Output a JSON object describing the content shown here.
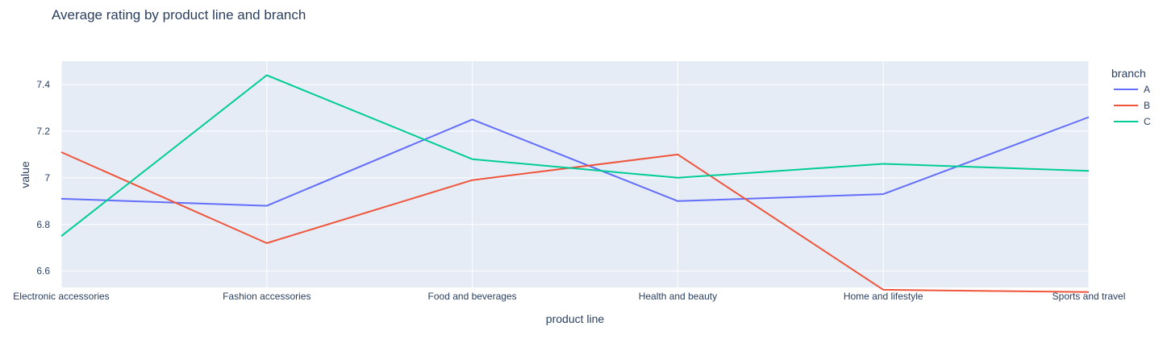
{
  "chart_data": {
    "type": "line",
    "title": "Average rating by product line and branch",
    "xlabel": "product line",
    "ylabel": "value",
    "categories": [
      "Electronic accessories",
      "Fashion accessories",
      "Food and beverages",
      "Health and beauty",
      "Home and lifestyle",
      "Sports and travel"
    ],
    "ylim": [
      6.53,
      7.5
    ],
    "yticks": [
      6.6,
      6.8,
      7,
      7.2,
      7.4
    ],
    "ytick_labels": [
      "6.6",
      "6.8",
      "7",
      "7.2",
      "7.4"
    ],
    "grid": true,
    "legend_title": "branch",
    "legend_position": "right",
    "plot_background": "#e5ecf6",
    "series": [
      {
        "name": "A",
        "color": "#636efa",
        "values": [
          6.91,
          6.88,
          7.25,
          6.9,
          6.93,
          7.26
        ]
      },
      {
        "name": "B",
        "color": "#ef553b",
        "values": [
          7.11,
          6.72,
          6.99,
          7.1,
          6.52,
          6.51
        ]
      },
      {
        "name": "C",
        "color": "#00cc96",
        "values": [
          6.75,
          7.44,
          7.08,
          7.0,
          7.06,
          7.03
        ]
      }
    ]
  }
}
